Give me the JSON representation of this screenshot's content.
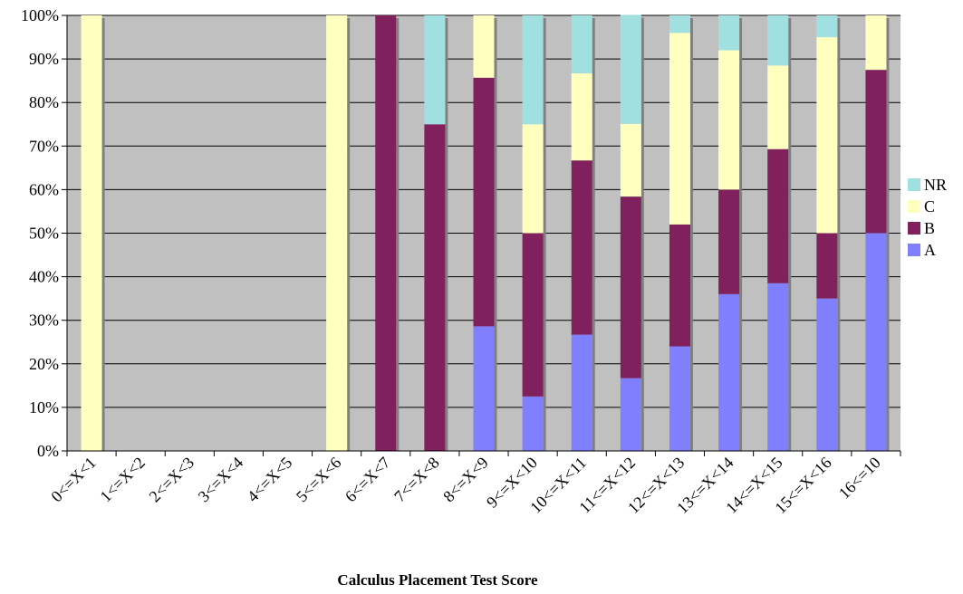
{
  "chart_data": {
    "type": "bar",
    "stacked": true,
    "percent_stacked": true,
    "title": "",
    "xlabel": "Calculus Placement Test Score",
    "ylabel": "",
    "ylim": [
      0,
      100
    ],
    "y_ticks": [
      "0%",
      "10%",
      "20%",
      "30%",
      "40%",
      "50%",
      "60%",
      "70%",
      "80%",
      "90%",
      "100%"
    ],
    "grid": true,
    "legend_position": "right",
    "categories": [
      "0<=X<1",
      "1<=X<2",
      "2<=X<3",
      "3<=X<4",
      "4<=X<5",
      "5<=X<6",
      "6<=X<7",
      "7<=X<8",
      "8<=X<9",
      "9<=X<10",
      "10<=X<11",
      "11<=X<12",
      "12<=X<13",
      "13<=X<14",
      "14<=X<15",
      "15<=X<16",
      "16<=10"
    ],
    "series": [
      {
        "name": "A",
        "color": "#8080ff",
        "values": [
          0,
          0,
          0,
          0,
          0,
          0,
          0,
          0,
          28.6,
          12.5,
          26.7,
          16.7,
          24,
          36,
          38.5,
          35,
          50
        ]
      },
      {
        "name": "B",
        "color": "#80205c",
        "values": [
          0,
          0,
          0,
          0,
          0,
          0,
          100,
          75,
          57.1,
          37.5,
          40,
          41.7,
          28,
          24,
          30.8,
          15,
          37.5
        ]
      },
      {
        "name": "C",
        "color": "#ffffc0",
        "values": [
          100,
          0,
          0,
          0,
          0,
          100,
          0,
          0,
          14.3,
          25,
          20,
          16.7,
          44,
          32,
          19.2,
          45,
          12.5
        ]
      },
      {
        "name": "NR",
        "color": "#a0e0e0",
        "values": [
          0,
          0,
          0,
          0,
          0,
          0,
          0,
          25,
          0,
          25,
          13.3,
          25,
          4,
          8,
          11.5,
          5,
          0
        ]
      }
    ],
    "plot_background": "#c0c0c0",
    "bar_shadow_color": "#808080"
  }
}
